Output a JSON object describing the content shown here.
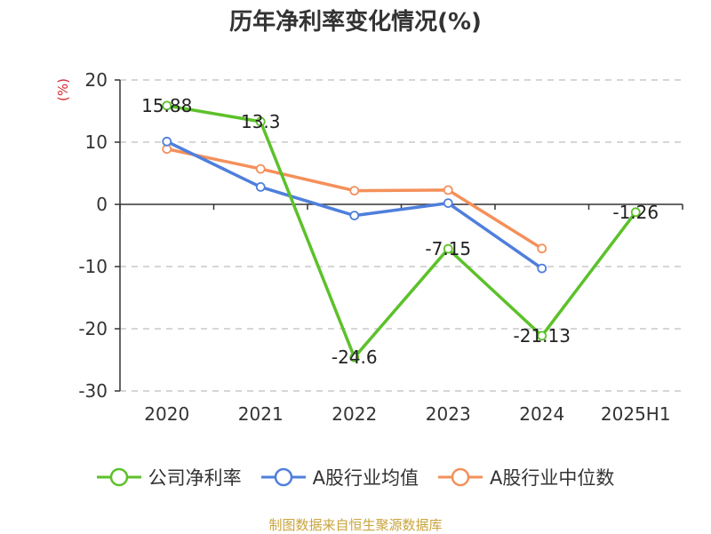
{
  "title": "历年净利率变化情况(%)",
  "unit": "(%)",
  "source": "制图数据来自恒生聚源数据库",
  "chart_data": {
    "type": "line",
    "categories": [
      "2020",
      "2021",
      "2022",
      "2023",
      "2024",
      "2025H1"
    ],
    "ylim": [
      -30,
      20
    ],
    "yticks": [
      -30,
      -20,
      -10,
      0,
      10,
      20
    ],
    "grid": true,
    "legend_position": "bottom",
    "series": [
      {
        "name": "公司净利率",
        "color": "#5cc12a",
        "values": [
          15.88,
          13.3,
          -24.6,
          -7.15,
          -21.13,
          -1.26
        ],
        "labels": [
          "15.88",
          "13.3",
          "-24.6",
          "-7.15",
          "-21.13",
          "-1.26"
        ]
      },
      {
        "name": "A股行业均值",
        "color": "#4f7fdb",
        "values": [
          10.1,
          2.8,
          -1.8,
          0.2,
          -10.3,
          null
        ]
      },
      {
        "name": "A股行业中位数",
        "color": "#f4905a",
        "values": [
          8.9,
          5.7,
          2.2,
          2.3,
          -7.1,
          null
        ]
      }
    ]
  }
}
